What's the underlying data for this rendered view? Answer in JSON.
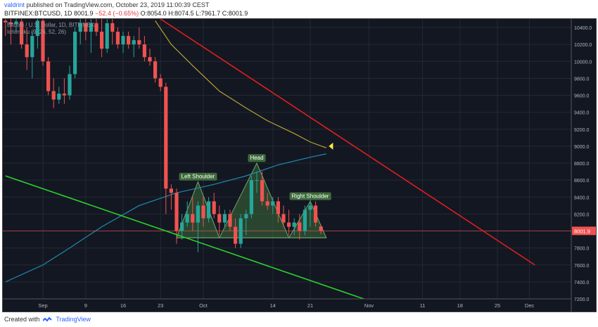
{
  "header": {
    "author": "valdrint",
    "published_text": "published on TradingView.com, October 23, 2019 11:00:39 CEST",
    "symbol_line": "BITFINEX:BTCUSD, 1D 8001.9",
    "change": "−52.4 (−0.65%)",
    "ohlc": "O:8054.0 H:8074.5 L:7961.7 C:8001.9"
  },
  "legend": {
    "title": "Bitcoin / U.S. Dollar, 1D, BITFINEX",
    "indicator": "Ichimoku (9, 26, 52, 26)"
  },
  "footer": {
    "created_with": "Created with",
    "brand": "TradingView"
  },
  "colors": {
    "bg": "#131722",
    "up": "#26a69a",
    "down": "#ef5350",
    "grid": "#242832",
    "resistance": "#e01e1e",
    "support": "#2bd02b",
    "ma_yellow": "#b8a330",
    "ma_blue": "#1f8bb0",
    "pattern_fill": "#3d6b3a",
    "price_label_bg": "#ef5350",
    "marker": "#ffeb3b"
  },
  "chart_data": {
    "type": "candlestick",
    "ylim": [
      7200,
      10500
    ],
    "y_ticks": [
      7200,
      7400,
      7600,
      7800,
      8000,
      8200,
      8400,
      8600,
      8800,
      9000,
      9200,
      9400,
      9600,
      9800,
      10000,
      10200,
      10400
    ],
    "y_tick_labels": [
      "7200.0",
      "7400.0",
      "7600.0",
      "7800.0",
      "8000.0",
      "8200.0",
      "8400.0",
      "8600.0",
      "8800.0",
      "9000.0",
      "9200.0",
      "9400.0",
      "9600.0",
      "9800.0",
      "10000.0",
      "10200.0",
      "10400.0"
    ],
    "x_ticks": [
      {
        "day": 0,
        "label": "Sep"
      },
      {
        "day": 8,
        "label": "9"
      },
      {
        "day": 15,
        "label": "16"
      },
      {
        "day": 22,
        "label": "23"
      },
      {
        "day": 30,
        "label": "Oct"
      },
      {
        "day": 43,
        "label": "14"
      },
      {
        "day": 50,
        "label": "21"
      },
      {
        "day": 61,
        "label": "Nov"
      },
      {
        "day": 71,
        "label": "11"
      },
      {
        "day": 78,
        "label": "18"
      },
      {
        "day": 85,
        "label": "25"
      },
      {
        "day": 91,
        "label": "Dec"
      }
    ],
    "last_price": 8001.9,
    "last_price_label": "8001.9",
    "candles": [
      [
        -7,
        10480,
        10500,
        10300,
        10460
      ],
      [
        -6,
        10460,
        10500,
        10200,
        10440
      ],
      [
        -5,
        10440,
        10500,
        10350,
        10470
      ],
      [
        -4,
        10470,
        10500,
        10150,
        10200
      ],
      [
        -3,
        10200,
        10400,
        9900,
        10050
      ],
      [
        -2,
        10050,
        10350,
        9800,
        10300
      ],
      [
        -1,
        10300,
        10500,
        10150,
        10480
      ],
      [
        0,
        10480,
        10500,
        9950,
        10000
      ],
      [
        1,
        10000,
        10050,
        9600,
        9650
      ],
      [
        2,
        9650,
        9800,
        9450,
        9550
      ],
      [
        3,
        9550,
        9700,
        9500,
        9620
      ],
      [
        4,
        9620,
        9800,
        9500,
        9600
      ],
      [
        5,
        9600,
        9950,
        9550,
        9850
      ],
      [
        6,
        9850,
        10400,
        9800,
        10350
      ],
      [
        7,
        10350,
        10500,
        10200,
        10450
      ],
      [
        8,
        10450,
        10500,
        10250,
        10350
      ],
      [
        9,
        10350,
        10500,
        10100,
        10450
      ],
      [
        10,
        10450,
        10500,
        10300,
        10350
      ],
      [
        11,
        10350,
        10500,
        10050,
        10150
      ],
      [
        12,
        10150,
        10500,
        10100,
        10450
      ],
      [
        13,
        10450,
        10500,
        10200,
        10350
      ],
      [
        14,
        10350,
        10400,
        10150,
        10200
      ],
      [
        15,
        10200,
        10350,
        10100,
        10300
      ],
      [
        16,
        10300,
        10350,
        10150,
        10200
      ],
      [
        17,
        10200,
        10300,
        10050,
        10250
      ],
      [
        18,
        10250,
        10400,
        10150,
        10200
      ],
      [
        19,
        10200,
        10300,
        10000,
        10050
      ],
      [
        20,
        10050,
        10150,
        9950,
        10000
      ],
      [
        21,
        10000,
        10050,
        9750,
        9800
      ],
      [
        22,
        9800,
        9850,
        9650,
        9700
      ],
      [
        23,
        9700,
        9750,
        8200,
        8500
      ],
      [
        24,
        8500,
        8550,
        8250,
        8450
      ],
      [
        25,
        8450,
        8500,
        7850,
        8000
      ],
      [
        26,
        8000,
        8200,
        7900,
        8100
      ],
      [
        27,
        8100,
        8350,
        8050,
        8200
      ],
      [
        28,
        8200,
        8400,
        8000,
        8100
      ],
      [
        29,
        8100,
        8350,
        7750,
        8300
      ],
      [
        30,
        8300,
        8400,
        8050,
        8150
      ],
      [
        31,
        8150,
        8400,
        8100,
        8350
      ],
      [
        32,
        8350,
        8450,
        8150,
        8200
      ],
      [
        33,
        8200,
        8300,
        7950,
        8100
      ],
      [
        34,
        8100,
        8250,
        8050,
        8200
      ],
      [
        35,
        8200,
        8250,
        8000,
        8050
      ],
      [
        36,
        8050,
        8150,
        7800,
        7850
      ],
      [
        37,
        7850,
        8200,
        7800,
        8150
      ],
      [
        38,
        8150,
        8250,
        7950,
        8200
      ],
      [
        39,
        8200,
        8650,
        8150,
        8600
      ],
      [
        40,
        8600,
        8700,
        8450,
        8600
      ],
      [
        41,
        8600,
        8700,
        8300,
        8350
      ],
      [
        42,
        8350,
        8450,
        8250,
        8300
      ],
      [
        43,
        8300,
        8400,
        8200,
        8350
      ],
      [
        44,
        8350,
        8400,
        8100,
        8200
      ],
      [
        45,
        8200,
        8300,
        8050,
        8100
      ],
      [
        46,
        8100,
        8250,
        7950,
        8050
      ],
      [
        47,
        8050,
        8150,
        7950,
        8100
      ],
      [
        48,
        8100,
        8200,
        7900,
        8000
      ],
      [
        49,
        8000,
        8300,
        7950,
        8250
      ],
      [
        50,
        8250,
        8400,
        8050,
        8300
      ],
      [
        51,
        8300,
        8350,
        8050,
        8100
      ],
      [
        52,
        8054,
        8074.5,
        7961.7,
        8001.9
      ]
    ],
    "lines": {
      "resistance": [
        [
          22,
          10500
        ],
        [
          92,
          7600
        ]
      ],
      "support": [
        [
          -7,
          8650
        ],
        [
          60,
          7200
        ]
      ],
      "ma_yellow": [
        [
          21,
          10480
        ],
        [
          24,
          10200
        ],
        [
          28,
          9950
        ],
        [
          33,
          9650
        ],
        [
          38,
          9450
        ],
        [
          42,
          9300
        ],
        [
          47,
          9150
        ],
        [
          50,
          9050
        ],
        [
          53,
          8980
        ]
      ],
      "ma_blue": [
        [
          -7,
          7400
        ],
        [
          0,
          7600
        ],
        [
          5,
          7800
        ],
        [
          11,
          8050
        ],
        [
          18,
          8300
        ],
        [
          25,
          8450
        ],
        [
          32,
          8550
        ],
        [
          38,
          8650
        ],
        [
          44,
          8780
        ],
        [
          50,
          8870
        ],
        [
          53,
          8910
        ]
      ],
      "price_level": 8001.9
    },
    "pattern": {
      "neckline_y": 7920,
      "neckline_x": [
        25,
        53
      ],
      "left_shoulder": [
        [
          25,
          7920
        ],
        [
          29,
          8580
        ],
        [
          33,
          7920
        ]
      ],
      "head": [
        [
          33,
          7920
        ],
        [
          40,
          8800
        ],
        [
          46,
          7920
        ]
      ],
      "right_shoulder": [
        [
          46,
          7920
        ],
        [
          50,
          8350
        ],
        [
          53,
          7920
        ]
      ]
    },
    "annotations": [
      {
        "label": "Left Shoulder",
        "day": 29,
        "value": 8620
      },
      {
        "label": "Head",
        "day": 40,
        "value": 8840
      },
      {
        "label": "Right Shoulder",
        "day": 50,
        "value": 8390
      }
    ],
    "marker": {
      "day": 54,
      "value": 9000
    }
  }
}
